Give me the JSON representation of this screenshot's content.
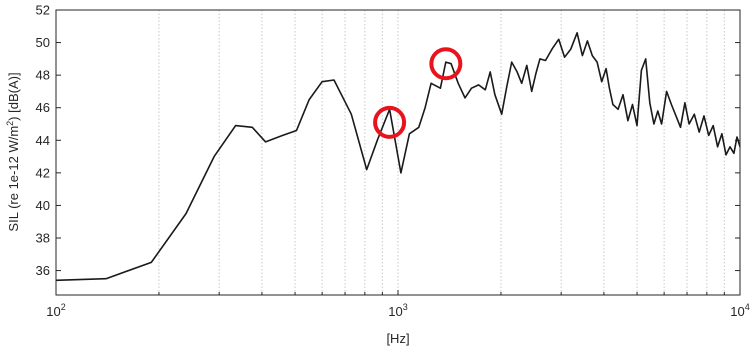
{
  "chart_data": {
    "type": "line",
    "title": "",
    "xlabel": "[Hz]",
    "ylabel": {
      "prefix": "SIL (re 1e-12 W/m",
      "sup": "2",
      "suffix": ") [dB(A)]"
    },
    "xscale": "log",
    "xlim": [
      100,
      10000
    ],
    "ylim": [
      34.5,
      52
    ],
    "x_ticks": [
      {
        "value": 100,
        "base": "10",
        "exp": "2"
      },
      {
        "value": 1000,
        "base": "10",
        "exp": "3"
      },
      {
        "value": 10000,
        "base": "10",
        "exp": "4"
      }
    ],
    "y_ticks": [
      36,
      38,
      40,
      42,
      44,
      46,
      48,
      50,
      52
    ],
    "grid": "x-minor-dotted",
    "line_color": "#1a1a1a",
    "annotation_color": "#e8131d",
    "annotations": [
      {
        "shape": "circle",
        "x": 945,
        "y": 45.1
      },
      {
        "shape": "circle",
        "x": 1380,
        "y": 48.7
      }
    ],
    "series": [
      {
        "x": [
          100,
          140,
          190,
          240,
          290,
          335,
          375,
          410,
          460,
          505,
          550,
          600,
          650,
          730,
          810,
          870,
          945,
          1020,
          1080,
          1150,
          1200,
          1250,
          1330,
          1380,
          1430,
          1500,
          1570,
          1640,
          1720,
          1800,
          1860,
          1920,
          2010,
          2080,
          2150,
          2230,
          2300,
          2380,
          2460,
          2530,
          2600,
          2700,
          2820,
          2950,
          3070,
          3200,
          3340,
          3460,
          3580,
          3700,
          3820,
          3940,
          4060,
          4150,
          4250,
          4400,
          4550,
          4700,
          4850,
          5000,
          5150,
          5300,
          5450,
          5600,
          5750,
          5900,
          6100,
          6300,
          6500,
          6700,
          6900,
          7100,
          7350,
          7600,
          7850,
          8100,
          8350,
          8600,
          8850,
          9100,
          9350,
          9600,
          9800,
          10000
        ],
        "y": [
          35.4,
          35.5,
          36.5,
          39.5,
          43.0,
          44.9,
          44.8,
          43.9,
          44.3,
          44.6,
          46.5,
          47.6,
          47.7,
          45.6,
          42.2,
          44.0,
          45.9,
          42.0,
          44.4,
          44.8,
          46.0,
          47.5,
          47.2,
          48.8,
          48.7,
          47.5,
          46.6,
          47.2,
          47.4,
          47.1,
          48.2,
          46.8,
          45.6,
          47.3,
          48.8,
          48.2,
          47.5,
          48.6,
          47.0,
          48.1,
          49.0,
          48.9,
          49.6,
          50.2,
          49.1,
          49.6,
          50.6,
          49.2,
          50.1,
          49.2,
          48.8,
          47.6,
          48.4,
          47.2,
          46.2,
          45.9,
          46.8,
          45.2,
          46.2,
          44.9,
          48.3,
          49.0,
          46.3,
          45.0,
          45.8,
          45.0,
          47.0,
          46.2,
          45.5,
          44.8,
          46.3,
          45.0,
          45.6,
          44.5,
          45.5,
          44.3,
          44.9,
          43.6,
          44.4,
          43.1,
          43.6,
          43.2,
          44.2,
          43.6
        ]
      }
    ]
  }
}
